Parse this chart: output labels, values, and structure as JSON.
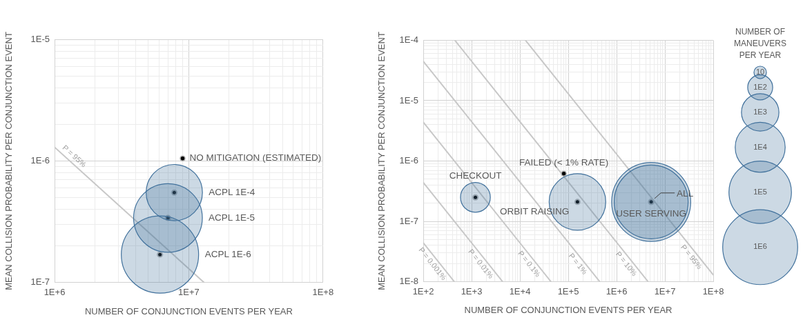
{
  "chart_data": [
    {
      "type": "bubble",
      "xlabel": "NUMBER OF CONJUNCTION EVENTS PER YEAR",
      "ylabel": "MEAN COLLISION PROBABILITY PER CONJUNCTION EVENT",
      "log": "xy",
      "grid": true,
      "xlim": [
        1000000.0,
        100000000.0
      ],
      "ylim": [
        1e-07,
        1e-05
      ],
      "xticks": [
        {
          "value": 1000000.0,
          "label": "1E+6"
        },
        {
          "value": 2000000.0,
          "label": null
        },
        {
          "value": 3000000.0,
          "label": null
        },
        {
          "value": 4000000.0,
          "label": null
        },
        {
          "value": 5000000.0,
          "label": null
        },
        {
          "value": 6000000.0,
          "label": null
        },
        {
          "value": 7000000.0,
          "label": null
        },
        {
          "value": 8000000.0,
          "label": null
        },
        {
          "value": 9000000.0,
          "label": null
        },
        {
          "value": 10000000.0,
          "label": "1E+7"
        },
        {
          "value": 20000000.0,
          "label": null
        },
        {
          "value": 30000000.0,
          "label": null
        },
        {
          "value": 40000000.0,
          "label": null
        },
        {
          "value": 50000000.0,
          "label": null
        },
        {
          "value": 60000000.0,
          "label": null
        },
        {
          "value": 70000000.0,
          "label": null
        },
        {
          "value": 80000000.0,
          "label": null
        },
        {
          "value": 90000000.0,
          "label": null
        },
        {
          "value": 100000000.0,
          "label": "1E+8"
        }
      ],
      "yticks": [
        {
          "value": 1e-07,
          "label": "1E-7"
        },
        {
          "value": 2e-07,
          "label": null
        },
        {
          "value": 3e-07,
          "label": null
        },
        {
          "value": 4e-07,
          "label": null
        },
        {
          "value": 5e-07,
          "label": null
        },
        {
          "value": 6e-07,
          "label": null
        },
        {
          "value": 7e-07,
          "label": null
        },
        {
          "value": 8e-07,
          "label": null
        },
        {
          "value": 9e-07,
          "label": null
        },
        {
          "value": 1e-06,
          "label": "1E-6"
        },
        {
          "value": 2e-06,
          "label": null
        },
        {
          "value": 3e-06,
          "label": null
        },
        {
          "value": 4e-06,
          "label": null
        },
        {
          "value": 5e-06,
          "label": null
        },
        {
          "value": 6e-06,
          "label": null
        },
        {
          "value": 7e-06,
          "label": null
        },
        {
          "value": 8e-06,
          "label": null
        },
        {
          "value": 9e-06,
          "label": null
        },
        {
          "value": 1e-05,
          "label": "1E-5"
        }
      ],
      "series": [
        {
          "name": "NO MITIGATION (ESTIMATED)",
          "type": "scatter",
          "marker": "circle",
          "color": "#000000",
          "x": [
            9000000.0
          ],
          "values": [
            1.05e-06
          ]
        },
        {
          "name": "ACPL 1E-4",
          "type": "bubble",
          "color": "#41719c",
          "x": [
            7800000.0
          ],
          "values": [
            5.5e-07
          ],
          "sizes": [
            0.53
          ]
        },
        {
          "name": "ACPL 1E-5",
          "type": "bubble",
          "color": "#41719c",
          "x": [
            7000000.0
          ],
          "values": [
            3.4e-07
          ],
          "sizes": [
            0.79
          ]
        },
        {
          "name": "ACPL 1E-6",
          "type": "bubble",
          "color": "#41719c",
          "x": [
            6100000.0
          ],
          "values": [
            1.7e-07
          ],
          "sizes": [
            1
          ]
        },
        {
          "name": "P = 95%",
          "type": "line",
          "color": "#c8c8c8",
          "x": [
            1000000.0,
            13000000.0
          ],
          "values": [
            1.3e-06,
            1e-07
          ]
        }
      ]
    },
    {
      "type": "bubble",
      "xlabel": "NUMBER OF CONJUNCTION EVENTS PER YEAR",
      "ylabel": "MEAN COLLISION PROBABILITY PER CONJUNCTION EVENT",
      "log": "xy",
      "grid": true,
      "legend": "right",
      "legend_title": "NUMBER OF MANEUVERS PER YEAR",
      "size_legend": [
        {
          "value": 1,
          "label": "10"
        },
        {
          "value": 4,
          "label": "1E2"
        },
        {
          "value": 9,
          "label": "1E3"
        },
        {
          "value": 16,
          "label": "1E4"
        },
        {
          "value": 25,
          "label": "1E5"
        },
        {
          "value": 36,
          "label": "1E6"
        }
      ],
      "xlim": [
        100.0,
        100000000.0
      ],
      "ylim": [
        1e-08,
        0.0001
      ],
      "xticks": [
        {
          "value": 100.0,
          "label": "1E+2"
        },
        {
          "value": 200.0,
          "label": null
        },
        {
          "value": 300.0,
          "label": null
        },
        {
          "value": 400.0,
          "label": null
        },
        {
          "value": 500.0,
          "label": null
        },
        {
          "value": 600.0,
          "label": null
        },
        {
          "value": 700.0,
          "label": null
        },
        {
          "value": 800.0,
          "label": null
        },
        {
          "value": 900.0,
          "label": null
        },
        {
          "value": 1000.0,
          "label": "1E+3"
        },
        {
          "value": 2000.0,
          "label": null
        },
        {
          "value": 3000.0,
          "label": null
        },
        {
          "value": 4000.0,
          "label": null
        },
        {
          "value": 5000.0,
          "label": null
        },
        {
          "value": 6000.0,
          "label": null
        },
        {
          "value": 7000.0,
          "label": null
        },
        {
          "value": 8000.0,
          "label": null
        },
        {
          "value": 9000.0,
          "label": null
        },
        {
          "value": 10000.0,
          "label": "1E+4"
        },
        {
          "value": 20000.0,
          "label": null
        },
        {
          "value": 30000.0,
          "label": null
        },
        {
          "value": 40000.0,
          "label": null
        },
        {
          "value": 50000.0,
          "label": null
        },
        {
          "value": 60000.0,
          "label": null
        },
        {
          "value": 70000.0,
          "label": null
        },
        {
          "value": 80000.0,
          "label": null
        },
        {
          "value": 90000.0,
          "label": null
        },
        {
          "value": 100000.0,
          "label": "1E+5"
        },
        {
          "value": 200000.0,
          "label": null
        },
        {
          "value": 300000.0,
          "label": null
        },
        {
          "value": 400000.0,
          "label": null
        },
        {
          "value": 500000.0,
          "label": null
        },
        {
          "value": 600000.0,
          "label": null
        },
        {
          "value": 700000.0,
          "label": null
        },
        {
          "value": 800000.0,
          "label": null
        },
        {
          "value": 900000.0,
          "label": null
        },
        {
          "value": 1000000.0,
          "label": "1E+6"
        },
        {
          "value": 2000000.0,
          "label": null
        },
        {
          "value": 3000000.0,
          "label": null
        },
        {
          "value": 4000000.0,
          "label": null
        },
        {
          "value": 5000000.0,
          "label": null
        },
        {
          "value": 6000000.0,
          "label": null
        },
        {
          "value": 7000000.0,
          "label": null
        },
        {
          "value": 8000000.0,
          "label": null
        },
        {
          "value": 9000000.0,
          "label": null
        },
        {
          "value": 10000000.0,
          "label": "1E+7"
        },
        {
          "value": 20000000.0,
          "label": null
        },
        {
          "value": 30000000.0,
          "label": null
        },
        {
          "value": 40000000.0,
          "label": null
        },
        {
          "value": 50000000.0,
          "label": null
        },
        {
          "value": 60000000.0,
          "label": null
        },
        {
          "value": 70000000.0,
          "label": null
        },
        {
          "value": 80000000.0,
          "label": null
        },
        {
          "value": 90000000.0,
          "label": null
        },
        {
          "value": 100000000.0,
          "label": "1E+8"
        }
      ],
      "yticks": [
        {
          "value": 1e-08,
          "label": "1E-8"
        },
        {
          "value": 2e-08,
          "label": null
        },
        {
          "value": 3e-08,
          "label": null
        },
        {
          "value": 4e-08,
          "label": null
        },
        {
          "value": 5e-08,
          "label": null
        },
        {
          "value": 6e-08,
          "label": null
        },
        {
          "value": 7e-08,
          "label": null
        },
        {
          "value": 8e-08,
          "label": null
        },
        {
          "value": 9e-08,
          "label": null
        },
        {
          "value": 1e-07,
          "label": "1E-7"
        },
        {
          "value": 2e-07,
          "label": null
        },
        {
          "value": 3e-07,
          "label": null
        },
        {
          "value": 4e-07,
          "label": null
        },
        {
          "value": 5e-07,
          "label": null
        },
        {
          "value": 6e-07,
          "label": null
        },
        {
          "value": 7e-07,
          "label": null
        },
        {
          "value": 8e-07,
          "label": null
        },
        {
          "value": 9e-07,
          "label": null
        },
        {
          "value": 1e-06,
          "label": "1E-6"
        },
        {
          "value": 2e-06,
          "label": null
        },
        {
          "value": 3e-06,
          "label": null
        },
        {
          "value": 4e-06,
          "label": null
        },
        {
          "value": 5e-06,
          "label": null
        },
        {
          "value": 6e-06,
          "label": null
        },
        {
          "value": 7e-06,
          "label": null
        },
        {
          "value": 8e-06,
          "label": null
        },
        {
          "value": 9e-06,
          "label": null
        },
        {
          "value": 1e-05,
          "label": "1E-5"
        },
        {
          "value": 2e-05,
          "label": null
        },
        {
          "value": 3e-05,
          "label": null
        },
        {
          "value": 4e-05,
          "label": null
        },
        {
          "value": 5e-05,
          "label": null
        },
        {
          "value": 6e-05,
          "label": null
        },
        {
          "value": 7e-05,
          "label": null
        },
        {
          "value": 8e-05,
          "label": null
        },
        {
          "value": 9e-05,
          "label": null
        },
        {
          "value": 0.0001,
          "label": "1E-4"
        }
      ],
      "series": [
        {
          "name": "CHECKOUT",
          "type": "bubble",
          "color": "#41719c",
          "x": [
            1200.0
          ],
          "values": [
            2.5e-07
          ],
          "sizes": [
            5.7
          ]
        },
        {
          "name": "FAILED (< 1% RATE)",
          "type": "scatter",
          "marker": "circle",
          "color": "#000000",
          "x": [
            81000.0
          ],
          "values": [
            6.2e-07
          ]
        },
        {
          "name": "ORBIT RAISING",
          "type": "bubble",
          "color": "#41719c",
          "x": [
            155000.0
          ],
          "values": [
            2.1e-07
          ],
          "sizes": [
            20.5
          ]
        },
        {
          "name": "ALL",
          "type": "bubble",
          "color": "#41719c",
          "x": [
            5200000.0
          ],
          "values": [
            2.1e-07
          ],
          "sizes": [
            40
          ]
        },
        {
          "name": "USER SERVING",
          "type": "bubble",
          "color": "#41719c",
          "x": [
            5200000.0
          ],
          "values": [
            2.1e-07
          ],
          "sizes": [
            35
          ]
        },
        {
          "name": "P = 0.001%",
          "type": "line",
          "color": "#c8c8c8",
          "x": [
            100.0,
            440.0
          ],
          "values": [
            4.4e-08,
            1e-08
          ]
        },
        {
          "name": "P = 0.01%",
          "type": "line",
          "color": "#c8c8c8",
          "x": [
            100.0,
            4400.0
          ],
          "values": [
            4.4e-07,
            1e-08
          ]
        },
        {
          "name": "P = 0.1%",
          "type": "line",
          "color": "#c8c8c8",
          "x": [
            100.0,
            44000.0
          ],
          "values": [
            4.4e-06,
            1e-08
          ]
        },
        {
          "name": "P = 1%",
          "type": "line",
          "color": "#c8c8c8",
          "x": [
            100.0,
            450000.0
          ],
          "values": [
            4.5e-05,
            1e-08
          ]
        },
        {
          "name": "P = 10%",
          "type": "line",
          "color": "#c8c8c8",
          "x": [
            450.0,
            4500000.0
          ],
          "values": [
            0.0001,
            1e-08
          ]
        },
        {
          "name": "P = 95%",
          "type": "line",
          "color": "#c8c8c8",
          "x": [
            13000.0,
            100000000.0
          ],
          "values": [
            0.0001,
            1.3e-08
          ]
        }
      ]
    }
  ]
}
